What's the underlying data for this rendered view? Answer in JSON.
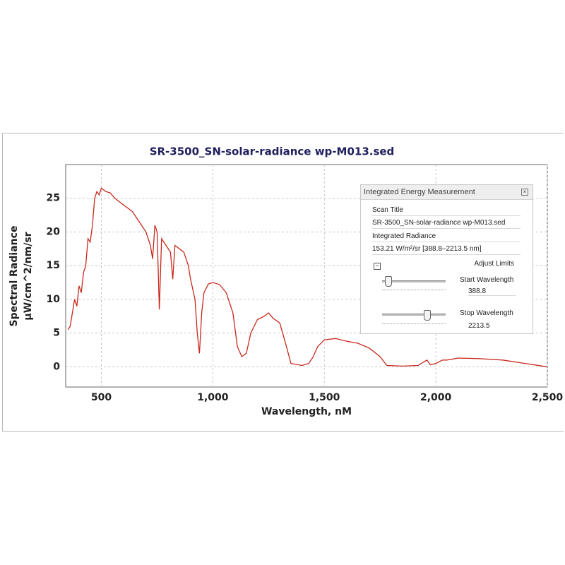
{
  "chart_data": {
    "type": "line",
    "title": "SR-3500_SN-solar-radiance  wp-M013.sed",
    "xlabel": "Wavelength, nM",
    "ylabel": [
      "Spectral Radiance",
      "µW/cm^2/nm/sr"
    ],
    "color": "#c8281c",
    "x": [
      350,
      360,
      370,
      380,
      390,
      400,
      410,
      420,
      430,
      440,
      450,
      460,
      470,
      480,
      490,
      500,
      520,
      540,
      560,
      580,
      600,
      620,
      640,
      660,
      680,
      700,
      720,
      730,
      740,
      750,
      760,
      770,
      790,
      810,
      820,
      830,
      850,
      870,
      890,
      900,
      920,
      930,
      940,
      950,
      960,
      980,
      1000,
      1030,
      1060,
      1090,
      1110,
      1130,
      1150,
      1170,
      1200,
      1230,
      1250,
      1270,
      1300,
      1330,
      1350,
      1400,
      1430,
      1450,
      1470,
      1500,
      1550,
      1600,
      1650,
      1700,
      1750,
      1780,
      1850,
      1920,
      1950,
      1960,
      1975,
      2000,
      2030,
      2050,
      2100,
      2200,
      2300,
      2400,
      2500
    ],
    "values": [
      5.5,
      6,
      8,
      10,
      9,
      12,
      11,
      14,
      15,
      19,
      18.5,
      21,
      25,
      26,
      25.5,
      26.5,
      26,
      25.8,
      25,
      24.5,
      24,
      23.5,
      23,
      22,
      21,
      20,
      18,
      16,
      21,
      20,
      8.5,
      19,
      18,
      17,
      13,
      18,
      17.5,
      17,
      15,
      13,
      10,
      5,
      2,
      8,
      11,
      12.3,
      12.5,
      12.2,
      11,
      8,
      3,
      1.5,
      2,
      5,
      7,
      7.5,
      8,
      7.2,
      6.5,
      3,
      0.5,
      0.2,
      0.5,
      1.5,
      3,
      4,
      4.2,
      3.8,
      3.5,
      2.8,
      1.5,
      0.2,
      0.1,
      0.2,
      0.8,
      1,
      0.3,
      0.5,
      1,
      1,
      1.3,
      1.2,
      1,
      0.5,
      0
    ],
    "xlim": [
      340,
      2500
    ],
    "ylim": [
      -3,
      30
    ],
    "xticks": [
      500,
      {
        "value": 1000,
        "label": "1,000"
      },
      {
        "value": 1500,
        "label": "1,500"
      },
      {
        "value": 2000,
        "label": "2,000"
      },
      {
        "value": 2500,
        "label": "2,500"
      }
    ],
    "yticks": [
      0,
      5,
      10,
      15,
      20,
      25
    ],
    "grid": true
  },
  "panel": {
    "title": "Integrated Energy Measurement",
    "scan_title_label": "Scan Title",
    "scan_title": "SR-3500_SN-solar-radiance wp-M013.sed",
    "radiance_label": "Integrated Radiance",
    "radiance": "153.21 W/m²/sr [388.8–2213.5 nm]",
    "adjust_label": "Adjust Limits",
    "start_label": "Start Wavelength",
    "start": "388.8",
    "stop_label": "Stop Wavelength",
    "stop": "2213.5"
  }
}
